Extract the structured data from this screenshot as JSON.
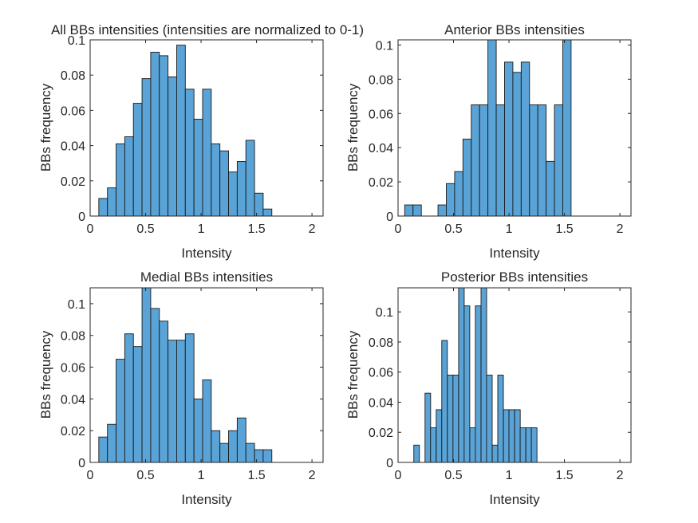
{
  "colors": {
    "bar_fill": "#5aa3d6",
    "bar_edge": "#1a1a1a",
    "axis": "#262626"
  },
  "chart_data": [
    {
      "type": "bar",
      "title": "All BBs intensities (intensities are normalized to 0-1)",
      "xlabel": "Intensity",
      "ylabel": "BBs frequency",
      "xlim": [
        0,
        2.1
      ],
      "ylim": [
        0,
        0.1
      ],
      "xticks": [
        0,
        0.5,
        1,
        1.5,
        2
      ],
      "xtick_labels": [
        "0",
        "0.5",
        "1",
        "1.5",
        "2"
      ],
      "yticks": [
        0,
        0.02,
        0.04,
        0.06,
        0.08,
        0.1
      ],
      "ytick_labels": [
        "0",
        "0.02",
        "0.04",
        "0.06",
        "0.08",
        "0.1"
      ],
      "bin_width": 0.078,
      "bins": [
        {
          "x0": 0.078,
          "value": 0.01
        },
        {
          "x0": 0.156,
          "value": 0.016
        },
        {
          "x0": 0.234,
          "value": 0.041
        },
        {
          "x0": 0.312,
          "value": 0.045
        },
        {
          "x0": 0.39,
          "value": 0.064
        },
        {
          "x0": 0.468,
          "value": 0.078
        },
        {
          "x0": 0.546,
          "value": 0.093
        },
        {
          "x0": 0.624,
          "value": 0.091
        },
        {
          "x0": 0.702,
          "value": 0.079
        },
        {
          "x0": 0.78,
          "value": 0.097
        },
        {
          "x0": 0.858,
          "value": 0.072
        },
        {
          "x0": 0.936,
          "value": 0.055
        },
        {
          "x0": 1.014,
          "value": 0.072
        },
        {
          "x0": 1.092,
          "value": 0.041
        },
        {
          "x0": 1.17,
          "value": 0.037
        },
        {
          "x0": 1.248,
          "value": 0.025
        },
        {
          "x0": 1.326,
          "value": 0.031
        },
        {
          "x0": 1.404,
          "value": 0.043
        },
        {
          "x0": 1.482,
          "value": 0.013
        },
        {
          "x0": 1.56,
          "value": 0.004
        }
      ]
    },
    {
      "type": "bar",
      "title": "Anterior BBs intensities",
      "xlabel": "Intensity",
      "ylabel": "BBs frequency",
      "xlim": [
        0,
        2.1
      ],
      "ylim": [
        0,
        0.103
      ],
      "xticks": [
        0,
        0.5,
        1,
        1.5,
        2
      ],
      "xtick_labels": [
        "0",
        "0.5",
        "1",
        "1.5",
        "2"
      ],
      "yticks": [
        0,
        0.02,
        0.04,
        0.06,
        0.08,
        0.1
      ],
      "ytick_labels": [
        "0",
        "0.02",
        "0.04",
        "0.06",
        "0.08",
        "0.1"
      ],
      "bin_width": 0.075,
      "bins": [
        {
          "x0": 0.06,
          "value": 0.0065
        },
        {
          "x0": 0.135,
          "value": 0.0065
        },
        {
          "x0": 0.36,
          "value": 0.0065
        },
        {
          "x0": 0.435,
          "value": 0.019
        },
        {
          "x0": 0.51,
          "value": 0.026
        },
        {
          "x0": 0.585,
          "value": 0.045
        },
        {
          "x0": 0.66,
          "value": 0.065
        },
        {
          "x0": 0.735,
          "value": 0.065
        },
        {
          "x0": 0.81,
          "value": 0.103
        },
        {
          "x0": 0.885,
          "value": 0.065
        },
        {
          "x0": 0.96,
          "value": 0.09
        },
        {
          "x0": 1.035,
          "value": 0.084
        },
        {
          "x0": 1.11,
          "value": 0.09
        },
        {
          "x0": 1.185,
          "value": 0.065
        },
        {
          "x0": 1.26,
          "value": 0.065
        },
        {
          "x0": 1.335,
          "value": 0.032
        },
        {
          "x0": 1.41,
          "value": 0.065
        },
        {
          "x0": 1.485,
          "value": 0.103
        }
      ]
    },
    {
      "type": "bar",
      "title": "Medial BBs intensities",
      "xlabel": "Intensity",
      "ylabel": "BBs frequency",
      "xlim": [
        0,
        2.1
      ],
      "ylim": [
        0,
        0.11
      ],
      "xticks": [
        0,
        0.5,
        1,
        1.5,
        2
      ],
      "xtick_labels": [
        "0",
        "0.5",
        "1",
        "1.5",
        "2"
      ],
      "yticks": [
        0,
        0.02,
        0.04,
        0.06,
        0.08,
        0.1
      ],
      "ytick_labels": [
        "0",
        "0.02",
        "0.04",
        "0.06",
        "0.08",
        "0.1"
      ],
      "bin_width": 0.078,
      "bins": [
        {
          "x0": 0.078,
          "value": 0.016
        },
        {
          "x0": 0.156,
          "value": 0.024
        },
        {
          "x0": 0.234,
          "value": 0.065
        },
        {
          "x0": 0.312,
          "value": 0.081
        },
        {
          "x0": 0.39,
          "value": 0.073
        },
        {
          "x0": 0.468,
          "value": 0.11
        },
        {
          "x0": 0.546,
          "value": 0.097
        },
        {
          "x0": 0.624,
          "value": 0.089
        },
        {
          "x0": 0.702,
          "value": 0.077
        },
        {
          "x0": 0.78,
          "value": 0.077
        },
        {
          "x0": 0.858,
          "value": 0.081
        },
        {
          "x0": 0.936,
          "value": 0.04
        },
        {
          "x0": 1.014,
          "value": 0.052
        },
        {
          "x0": 1.092,
          "value": 0.02
        },
        {
          "x0": 1.17,
          "value": 0.012
        },
        {
          "x0": 1.248,
          "value": 0.02
        },
        {
          "x0": 1.326,
          "value": 0.028
        },
        {
          "x0": 1.404,
          "value": 0.012
        },
        {
          "x0": 1.482,
          "value": 0.008
        },
        {
          "x0": 1.56,
          "value": 0.008
        }
      ]
    },
    {
      "type": "bar",
      "title": "Posterior BBs intensities",
      "xlabel": "Intensity",
      "ylabel": "BBs frequency",
      "xlim": [
        0,
        2.1
      ],
      "ylim": [
        0,
        0.116
      ],
      "xticks": [
        0,
        0.5,
        1,
        1.5,
        2
      ],
      "xtick_labels": [
        "0",
        "0.5",
        "1",
        "1.5",
        "2"
      ],
      "yticks": [
        0,
        0.02,
        0.04,
        0.06,
        0.08,
        0.1
      ],
      "ytick_labels": [
        "0",
        "0.02",
        "0.04",
        "0.06",
        "0.08",
        "0.1"
      ],
      "bin_width": 0.0505,
      "bins": [
        {
          "x0": 0.142,
          "value": 0.0115
        },
        {
          "x0": 0.243,
          "value": 0.046
        },
        {
          "x0": 0.293,
          "value": 0.023
        },
        {
          "x0": 0.344,
          "value": 0.035
        },
        {
          "x0": 0.394,
          "value": 0.081
        },
        {
          "x0": 0.445,
          "value": 0.058
        },
        {
          "x0": 0.495,
          "value": 0.058
        },
        {
          "x0": 0.546,
          "value": 0.116
        },
        {
          "x0": 0.596,
          "value": 0.104
        },
        {
          "x0": 0.647,
          "value": 0.023
        },
        {
          "x0": 0.697,
          "value": 0.104
        },
        {
          "x0": 0.748,
          "value": 0.116
        },
        {
          "x0": 0.798,
          "value": 0.058
        },
        {
          "x0": 0.849,
          "value": 0.0115
        },
        {
          "x0": 0.899,
          "value": 0.058
        },
        {
          "x0": 0.95,
          "value": 0.035
        },
        {
          "x0": 1.0,
          "value": 0.035
        },
        {
          "x0": 1.051,
          "value": 0.035
        },
        {
          "x0": 1.101,
          "value": 0.023
        },
        {
          "x0": 1.152,
          "value": 0.023
        },
        {
          "x0": 1.202,
          "value": 0.023
        }
      ]
    }
  ]
}
